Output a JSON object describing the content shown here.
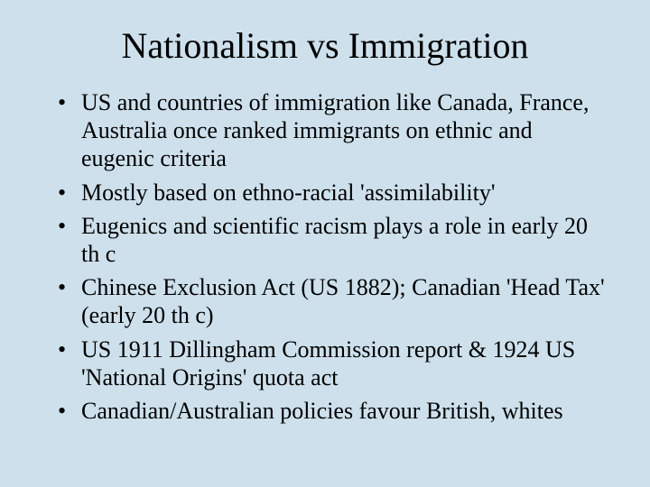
{
  "slide": {
    "background_color": "#cde0ec",
    "text_color": "#000000",
    "font_family": "Times New Roman",
    "title": "Nationalism vs Immigration",
    "title_fontsize": 40,
    "bullet_fontsize": 26,
    "bullets": [
      "US and countries of immigration like Canada, France, Australia once ranked immigrants on ethnic and eugenic criteria",
      "Mostly based on ethno-racial 'assimilability'",
      "Eugenics and scientific racism plays a role in early 20 th c",
      "Chinese Exclusion Act (US 1882); Canadian 'Head Tax' (early 20 th c)",
      "US 1911 Dillingham Commission report & 1924 US 'National Origins' quota act",
      "Canadian/Australian policies favour British, whites"
    ]
  }
}
